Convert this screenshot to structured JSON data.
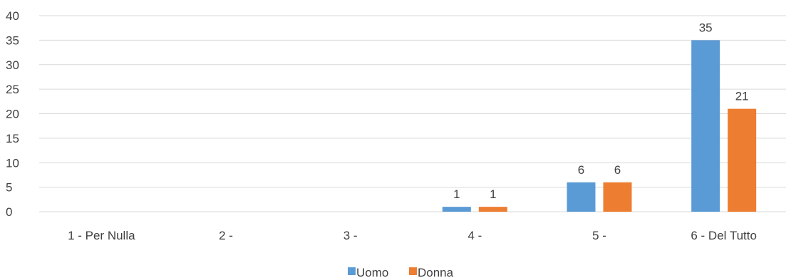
{
  "chart_data": {
    "type": "bar",
    "categories": [
      "1 - Per Nulla",
      "2 -",
      "3 -",
      "4 -",
      "5 -",
      "6 - Del Tutto"
    ],
    "series": [
      {
        "name": "Uomo",
        "values": [
          0,
          0,
          0,
          1,
          6,
          35
        ],
        "color": "#5b9bd5"
      },
      {
        "name": "Donna",
        "values": [
          0,
          0,
          0,
          1,
          6,
          21
        ],
        "color": "#ed7d31"
      }
    ],
    "data_labels": [
      [
        "",
        "",
        "",
        "1",
        "6",
        "35"
      ],
      [
        "",
        "",
        "",
        "1",
        "6",
        "21"
      ]
    ],
    "yticks": [
      "0",
      "5",
      "10",
      "15",
      "20",
      "25",
      "30",
      "35",
      "40"
    ],
    "ylim": [
      0,
      40
    ],
    "grid": true,
    "legend": "bottom",
    "title": "",
    "xlabel": "",
    "ylabel": ""
  }
}
